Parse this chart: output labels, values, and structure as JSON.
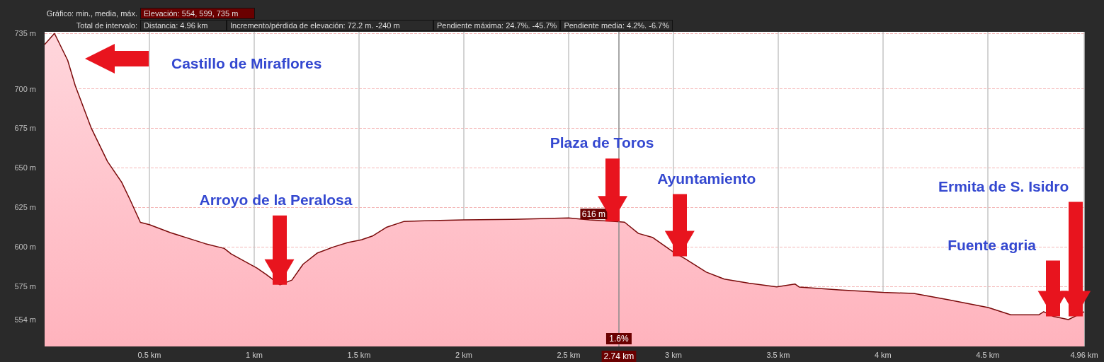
{
  "chart_data": {
    "type": "area",
    "x": [
      0,
      0.047,
      0.11,
      0.146,
      0.223,
      0.3,
      0.367,
      0.407,
      0.457,
      0.5,
      0.6,
      0.767,
      0.857,
      0.89,
      1.013,
      1.057,
      1.123,
      1.18,
      1.233,
      1.3,
      1.38,
      1.447,
      1.513,
      1.567,
      1.633,
      1.713,
      1.813,
      2.0,
      2.233,
      2.5,
      2.6,
      2.723,
      2.767,
      2.833,
      2.9,
      2.997,
      3.057,
      3.157,
      3.243,
      3.36,
      3.493,
      3.58,
      3.6,
      3.79,
      3.998,
      4.147,
      4.313,
      4.503,
      4.61,
      4.743,
      4.767,
      4.813,
      4.885,
      4.96
    ],
    "series": [
      {
        "color": "#7a0a0a",
        "values": [
          728,
          735,
          718,
          702,
          675,
          654,
          641,
          630,
          615.5,
          614,
          609,
          602,
          599,
          595.5,
          586.6,
          582.6,
          576,
          579,
          589,
          596,
          600,
          602.7,
          604.5,
          607,
          612.5,
          616,
          616.5,
          617,
          617.4,
          618.3,
          617,
          616,
          615.6,
          608.5,
          606,
          597,
          592.4,
          584,
          579.6,
          577,
          574.7,
          576.5,
          574.6,
          572.8,
          571.2,
          570.5,
          566.5,
          561.6,
          557,
          557,
          559,
          556,
          554,
          559
        ]
      }
    ],
    "xlim": [
      0,
      4.96
    ],
    "xticks": [
      {
        "value": 0.5,
        "label": "0.5 km"
      },
      {
        "value": 1,
        "label": "1 km"
      },
      {
        "value": 1.5,
        "label": "1.5 km"
      },
      {
        "value": 2,
        "label": "2 km"
      },
      {
        "value": 2.5,
        "label": "2.5 km"
      },
      {
        "value": 3,
        "label": "3 km"
      },
      {
        "value": 3.5,
        "label": "3.5 km"
      },
      {
        "value": 4,
        "label": "4 km"
      },
      {
        "value": 4.5,
        "label": "4.5 km"
      },
      {
        "value": 4.96,
        "label": "4.96 km"
      }
    ],
    "ylim": [
      537,
      736
    ],
    "yticks": [
      {
        "value": 554,
        "label": "554 m"
      },
      {
        "value": 575,
        "label": "575 m"
      },
      {
        "value": 600,
        "label": "600 m"
      },
      {
        "value": 625,
        "label": "625 m"
      },
      {
        "value": 650,
        "label": "650 m"
      },
      {
        "value": 675,
        "label": "675 m"
      },
      {
        "value": 700,
        "label": "700 m"
      },
      {
        "value": 735,
        "label": "735 m"
      }
    ],
    "grid": true,
    "marker": "none",
    "ref_lines": [
      {
        "axis": "x",
        "value": 2.74,
        "label": "2.74 km"
      }
    ],
    "annotations": [
      "Gráfico: min., media, máx.",
      "Elevación: 554, 599, 735 m",
      "Total de intervalo:",
      "Distancia: 4.96 km",
      "Incremento/pérdida de elevación: 72.2 m. -240 m",
      "Pendiente máxima: 24.7%. -45.7%",
      "Pendiente media: 4.2%. -6.7%",
      "Castillo de Miraflores",
      {
        "text": "Arroyo de la Peralosa",
        "x": 1.12,
        "y": 576
      },
      {
        "text": "Plaza de Toros",
        "x": 2.71,
        "y": 616
      },
      {
        "text": "Ayuntamiento",
        "x": 3.03,
        "y": 594
      },
      {
        "text": "Fuente agria",
        "x": 4.81,
        "y": 556
      },
      {
        "text": "Ermita de S. Isidro",
        "x": 4.92,
        "y": 556
      },
      {
        "text": "616 m",
        "x": 2.62,
        "y": 617
      },
      {
        "text": "1.6%",
        "x": 2.74
      }
    ]
  }
}
